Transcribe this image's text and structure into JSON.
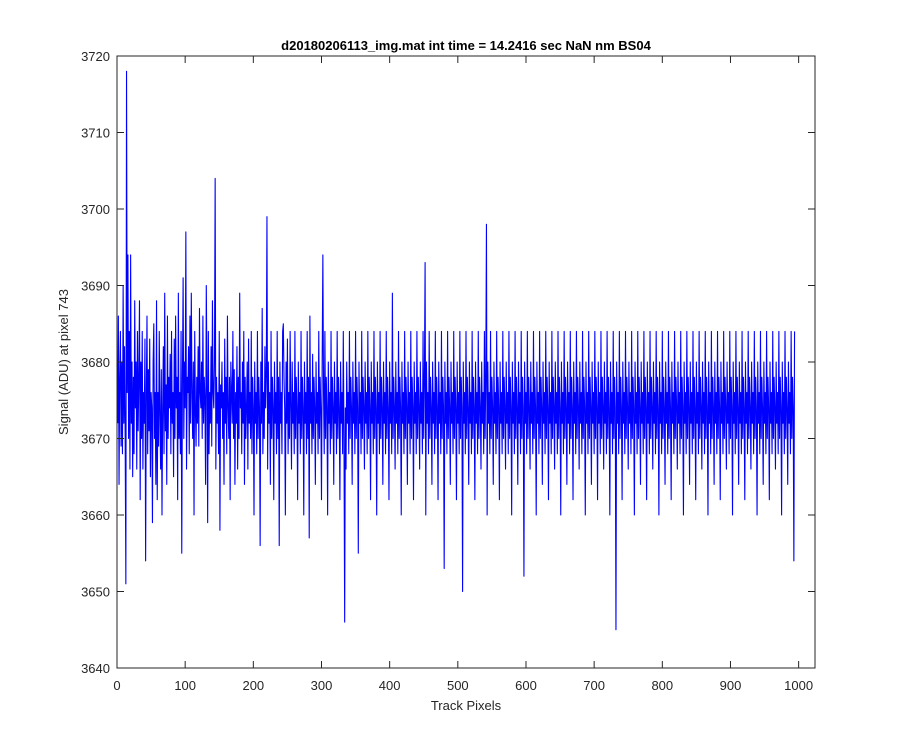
{
  "figure": {
    "background": "#ffffff",
    "axis_color": "#262626"
  },
  "chart_data": {
    "type": "line",
    "title": "d20180206113_img.mat int time = 14.2416 sec  NaN nm BS04",
    "xlabel": "Track Pixels",
    "ylabel": "Signal (ADU) at pixel 743",
    "xlim": [
      0,
      1024
    ],
    "ylim": [
      3640,
      3720
    ],
    "xticks": [
      0,
      100,
      200,
      300,
      400,
      500,
      600,
      700,
      800,
      900,
      1000
    ],
    "yticks": [
      3640,
      3650,
      3660,
      3670,
      3680,
      3690,
      3700,
      3710,
      3720
    ],
    "grid": false,
    "box": true,
    "series": [
      {
        "color": "#0000ff",
        "x_start": 1,
        "x_step": 1,
        "values": [
          3672,
          3686,
          3664,
          3678,
          3684,
          3669,
          3680,
          3668,
          3690,
          3672,
          3682,
          3670,
          3651,
          3718,
          3676,
          3694,
          3670,
          3684,
          3666,
          3694,
          3672,
          3680,
          3665,
          3678,
          3668,
          3688,
          3674,
          3680,
          3666,
          3684,
          3671,
          3678,
          3688,
          3662,
          3680,
          3670,
          3684,
          3666,
          3676,
          3672,
          3683,
          3654,
          3676,
          3686,
          3668,
          3679,
          3671,
          3683,
          3665,
          3676,
          3674,
          3659,
          3680,
          3685,
          3670,
          3676,
          3664,
          3688,
          3662,
          3676,
          3669,
          3684,
          3673,
          3666,
          3679,
          3660,
          3674,
          3682,
          3668,
          3689,
          3671,
          3677,
          3664,
          3686,
          3670,
          3678,
          3674,
          3681,
          3668,
          3684,
          3672,
          3676,
          3665,
          3683,
          3670,
          3686,
          3674,
          3678,
          3662,
          3689,
          3670,
          3676,
          3668,
          3684,
          3655,
          3678,
          3691,
          3670,
          3680,
          3674,
          3697,
          3666,
          3678,
          3676,
          3682,
          3668,
          3686,
          3672,
          3689,
          3676,
          3670,
          3680,
          3660,
          3684,
          3674,
          3669,
          3678,
          3672,
          3682,
          3669,
          3687,
          3676,
          3674,
          3680,
          3670,
          3686,
          3672,
          3678,
          3675,
          3664,
          3690,
          3678,
          3659,
          3684,
          3668,
          3676,
          3672,
          3682,
          3669,
          3688,
          3676,
          3674,
          3680,
          3704,
          3666,
          3678,
          3672,
          3676,
          3668,
          3684,
          3658,
          3677,
          3674,
          3680,
          3670,
          3676,
          3664,
          3683,
          3672,
          3678,
          3668,
          3686,
          3674,
          3670,
          3678,
          3662,
          3680,
          3676,
          3672,
          3684,
          3670,
          3679,
          3664,
          3676,
          3672,
          3682,
          3666,
          3678,
          3670,
          3689,
          3674,
          3676,
          3668,
          3680,
          3672,
          3684,
          3664,
          3678,
          3670,
          3674,
          3680,
          3666,
          3683,
          3672,
          3676,
          3670,
          3684,
          3668,
          3678,
          3674,
          3660,
          3680,
          3672,
          3676,
          3668,
          3684,
          3670,
          3678,
          3674,
          3656,
          3680,
          3672,
          3687,
          3668,
          3676,
          3670,
          3682,
          3674,
          3678,
          3699,
          3666,
          3680,
          3672,
          3676,
          3664,
          3684,
          3670,
          3678,
          3674,
          3662,
          3680,
          3672,
          3676,
          3668,
          3684,
          3670,
          3678,
          3656,
          3680,
          3672,
          3676,
          3668,
          3684,
          3685,
          3678,
          3674,
          3660,
          3680,
          3672,
          3683,
          3668,
          3676,
          3670,
          3684,
          3674,
          3666,
          3680,
          3672,
          3676,
          3668,
          3684,
          3670,
          3678,
          3674,
          3662,
          3680,
          3672,
          3676,
          3668,
          3684,
          3670,
          3678,
          3674,
          3660,
          3680,
          3672,
          3676,
          3668,
          3684,
          3670,
          3678,
          3657,
          3686,
          3672,
          3676,
          3668,
          3681,
          3670,
          3678,
          3674,
          3664,
          3680,
          3672,
          3676,
          3668,
          3684,
          3670,
          3678,
          3674,
          3662,
          3680,
          3694,
          3676,
          3668,
          3684,
          3670,
          3678,
          3674,
          3660,
          3680,
          3672,
          3676,
          3668,
          3684,
          3670,
          3678,
          3674,
          3664,
          3680,
          3672,
          3676,
          3668,
          3684,
          3670,
          3678,
          3674,
          3662,
          3680,
          3672,
          3676,
          3668,
          3684,
          3670,
          3646,
          3674,
          3666,
          3680,
          3672,
          3676,
          3668,
          3684,
          3670,
          3678,
          3674,
          3664,
          3680,
          3672,
          3676,
          3668,
          3684,
          3670,
          3678,
          3674,
          3655,
          3680,
          3672,
          3676,
          3668,
          3684,
          3670,
          3678,
          3674,
          3666,
          3680,
          3672,
          3676,
          3668,
          3684,
          3670,
          3678,
          3674,
          3662,
          3680,
          3672,
          3676,
          3668,
          3684,
          3670,
          3678,
          3674,
          3660,
          3680,
          3672,
          3676,
          3668,
          3684,
          3670,
          3678,
          3674,
          3664,
          3680,
          3672,
          3676,
          3668,
          3684,
          3670,
          3678,
          3674,
          3662,
          3680,
          3672,
          3676,
          3668,
          3689,
          3670,
          3678,
          3674,
          3666,
          3680,
          3672,
          3676,
          3668,
          3684,
          3670,
          3678,
          3674,
          3660,
          3680,
          3672,
          3676,
          3668,
          3684,
          3670,
          3678,
          3674,
          3664,
          3680,
          3672,
          3676,
          3668,
          3684,
          3670,
          3678,
          3674,
          3662,
          3680,
          3672,
          3676,
          3668,
          3684,
          3670,
          3678,
          3674,
          3666,
          3680,
          3672,
          3676,
          3668,
          3684,
          3670,
          3678,
          3693,
          3660,
          3680,
          3672,
          3676,
          3668,
          3684,
          3670,
          3678,
          3674,
          3664,
          3680,
          3672,
          3676,
          3668,
          3684,
          3670,
          3678,
          3674,
          3662,
          3680,
          3672,
          3676,
          3668,
          3684,
          3670,
          3678,
          3674,
          3653,
          3680,
          3672,
          3676,
          3668,
          3684,
          3670,
          3678,
          3674,
          3664,
          3680,
          3672,
          3676,
          3668,
          3684,
          3670,
          3678,
          3674,
          3662,
          3680,
          3672,
          3676,
          3668,
          3684,
          3670,
          3678,
          3674,
          3650,
          3680,
          3672,
          3676,
          3668,
          3684,
          3670,
          3678,
          3674,
          3664,
          3680,
          3672,
          3676,
          3668,
          3684,
          3670,
          3678,
          3674,
          3662,
          3680,
          3672,
          3676,
          3668,
          3684,
          3670,
          3678,
          3674,
          3666,
          3680,
          3672,
          3676,
          3668,
          3684,
          3670,
          3678,
          3698,
          3660,
          3680,
          3672,
          3676,
          3668,
          3684,
          3670,
          3678,
          3674,
          3664,
          3680,
          3672,
          3676,
          3668,
          3684,
          3670,
          3678,
          3674,
          3662,
          3680,
          3672,
          3676,
          3668,
          3684,
          3670,
          3678,
          3674,
          3666,
          3680,
          3672,
          3676,
          3668,
          3684,
          3670,
          3678,
          3674,
          3660,
          3680,
          3672,
          3676,
          3668,
          3684,
          3670,
          3678,
          3674,
          3664,
          3680,
          3672,
          3676,
          3668,
          3684,
          3670,
          3678,
          3674,
          3652,
          3680,
          3672,
          3676,
          3668,
          3684,
          3670,
          3678,
          3674,
          3666,
          3680,
          3672,
          3676,
          3668,
          3684,
          3670,
          3678,
          3674,
          3660,
          3680,
          3672,
          3676,
          3668,
          3684,
          3670,
          3678,
          3674,
          3664,
          3680,
          3672,
          3676,
          3668,
          3684,
          3670,
          3678,
          3674,
          3662,
          3680,
          3672,
          3676,
          3668,
          3684,
          3670,
          3678,
          3674,
          3666,
          3680,
          3672,
          3676,
          3668,
          3684,
          3670,
          3678,
          3674,
          3660,
          3680,
          3672,
          3676,
          3668,
          3684,
          3670,
          3678,
          3674,
          3664,
          3680,
          3672,
          3676,
          3668,
          3684,
          3670,
          3678,
          3674,
          3662,
          3680,
          3672,
          3676,
          3668,
          3684,
          3670,
          3678,
          3674,
          3666,
          3680,
          3672,
          3676,
          3668,
          3684,
          3670,
          3678,
          3674,
          3660,
          3680,
          3672,
          3676,
          3668,
          3684,
          3670,
          3678,
          3674,
          3664,
          3680,
          3672,
          3676,
          3668,
          3684,
          3670,
          3678,
          3674,
          3662,
          3680,
          3672,
          3676,
          3668,
          3684,
          3670,
          3678,
          3674,
          3666,
          3680,
          3672,
          3676,
          3668,
          3684,
          3670,
          3678,
          3674,
          3660,
          3680,
          3672,
          3676,
          3668,
          3684,
          3670,
          3678,
          3674,
          3645,
          3680,
          3672,
          3676,
          3668,
          3684,
          3670,
          3678,
          3674,
          3662,
          3680,
          3672,
          3676,
          3668,
          3684,
          3670,
          3678,
          3674,
          3666,
          3680,
          3672,
          3676,
          3668,
          3684,
          3670,
          3678,
          3674,
          3660,
          3680,
          3672,
          3676,
          3668,
          3684,
          3670,
          3678,
          3674,
          3664,
          3680,
          3672,
          3676,
          3668,
          3684,
          3670,
          3678,
          3674,
          3662,
          3680,
          3672,
          3676,
          3668,
          3684,
          3670,
          3678,
          3674,
          3666,
          3680,
          3672,
          3676,
          3668,
          3684,
          3670,
          3678,
          3674,
          3660,
          3680,
          3672,
          3676,
          3668,
          3684,
          3670,
          3678,
          3674,
          3664,
          3680,
          3672,
          3676,
          3668,
          3684,
          3670,
          3678,
          3674,
          3662,
          3680,
          3672,
          3676,
          3668,
          3684,
          3670,
          3678,
          3674,
          3666,
          3680,
          3672,
          3676,
          3668,
          3684,
          3670,
          3678,
          3674,
          3660,
          3680,
          3672,
          3676,
          3668,
          3684,
          3670,
          3678,
          3674,
          3664,
          3680,
          3672,
          3676,
          3668,
          3684,
          3670,
          3678,
          3674,
          3662,
          3680,
          3672,
          3676,
          3668,
          3684,
          3670,
          3678,
          3674,
          3666,
          3680,
          3672,
          3676,
          3668,
          3684,
          3670,
          3678,
          3674,
          3660,
          3680,
          3672,
          3676,
          3668,
          3684,
          3670,
          3678,
          3674,
          3664,
          3680,
          3672,
          3676,
          3668,
          3684,
          3670,
          3678,
          3674,
          3662,
          3680,
          3672,
          3676,
          3668,
          3684,
          3670,
          3678,
          3674,
          3666,
          3680,
          3672,
          3676,
          3668,
          3684,
          3670,
          3678,
          3674,
          3660,
          3680,
          3672,
          3676,
          3668,
          3684,
          3670,
          3678,
          3674,
          3664,
          3680,
          3672,
          3676,
          3668,
          3684,
          3670,
          3678,
          3674,
          3662,
          3680,
          3672,
          3676,
          3668,
          3684,
          3670,
          3678,
          3674,
          3666,
          3680,
          3672,
          3676,
          3668,
          3684,
          3670,
          3678,
          3674,
          3660,
          3680,
          3672,
          3676,
          3668,
          3684,
          3670,
          3678,
          3674,
          3664,
          3680,
          3672,
          3676,
          3668,
          3684,
          3670,
          3678,
          3674,
          3662,
          3680,
          3672,
          3676,
          3668,
          3684,
          3670,
          3678,
          3674,
          3666,
          3680,
          3672,
          3676,
          3668,
          3684,
          3670,
          3678,
          3674,
          3660,
          3680,
          3672,
          3676,
          3668,
          3684,
          3670,
          3678,
          3674,
          3664,
          3680,
          3672,
          3676,
          3668,
          3684,
          3670,
          3678,
          3674,
          3654,
          3684
        ]
      }
    ]
  }
}
